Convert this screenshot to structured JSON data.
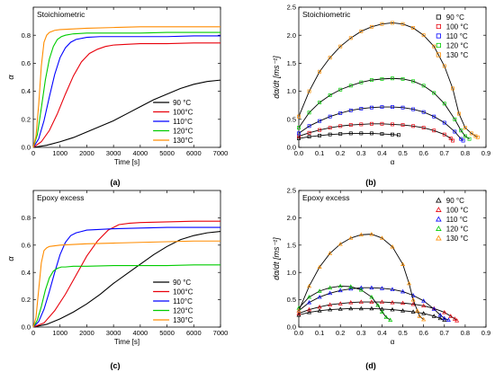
{
  "figure": {
    "panel_labels": [
      "(a)",
      "(b)",
      "(c)",
      "(d)"
    ],
    "colors": {
      "90": "#000000",
      "100": "#e8000b",
      "110": "#0000ff",
      "120": "#00cc00",
      "130": "#ff8c00"
    }
  },
  "chart_data": [
    {
      "id": "a",
      "type": "line",
      "title": "Stoichiometric",
      "xlabel": "Time [s]",
      "ylabel": "α",
      "xlim": [
        0,
        7000
      ],
      "ylim": [
        0,
        1.0
      ],
      "xticks": [
        0,
        1000,
        2000,
        3000,
        4000,
        5000,
        6000,
        7000
      ],
      "yticks": [
        0.0,
        0.2,
        0.4,
        0.6,
        0.8
      ],
      "legend": "bottom-right",
      "series": [
        {
          "name": "90 °C",
          "color": "#000000",
          "x": [
            0,
            500,
            1000,
            1500,
            2000,
            2500,
            3000,
            3500,
            4000,
            4500,
            5000,
            5500,
            6000,
            6500,
            7000
          ],
          "y": [
            0,
            0.015,
            0.04,
            0.07,
            0.11,
            0.15,
            0.19,
            0.24,
            0.29,
            0.34,
            0.38,
            0.42,
            0.45,
            0.47,
            0.48
          ]
        },
        {
          "name": "100°C",
          "color": "#e8000b",
          "x": [
            0,
            300,
            600,
            900,
            1200,
            1500,
            1800,
            2100,
            2400,
            2700,
            3000,
            3500,
            4000,
            5000,
            6000,
            7000
          ],
          "y": [
            0,
            0.04,
            0.12,
            0.24,
            0.38,
            0.51,
            0.61,
            0.67,
            0.7,
            0.72,
            0.73,
            0.735,
            0.74,
            0.74,
            0.745,
            0.745
          ]
        },
        {
          "name": "110°C",
          "color": "#0000ff",
          "x": [
            0,
            200,
            400,
            600,
            800,
            1000,
            1200,
            1400,
            1600,
            2000,
            2500,
            3000,
            4000,
            5000,
            6000,
            7000
          ],
          "y": [
            0,
            0.06,
            0.19,
            0.36,
            0.52,
            0.64,
            0.71,
            0.75,
            0.77,
            0.785,
            0.79,
            0.79,
            0.79,
            0.79,
            0.795,
            0.795
          ]
        },
        {
          "name": "120°C",
          "color": "#00cc00",
          "x": [
            0,
            150,
            300,
            450,
            600,
            750,
            900,
            1050,
            1200,
            1500,
            2000,
            3000,
            4000,
            5000,
            6000,
            7000
          ],
          "y": [
            0,
            0.09,
            0.28,
            0.48,
            0.63,
            0.72,
            0.77,
            0.79,
            0.8,
            0.81,
            0.815,
            0.815,
            0.815,
            0.82,
            0.82,
            0.82
          ]
        },
        {
          "name": "130°C",
          "color": "#ff8c00",
          "x": [
            0,
            100,
            200,
            300,
            400,
            500,
            600,
            800,
            1000,
            1500,
            2000,
            3000,
            4000,
            5000,
            6000,
            7000
          ],
          "y": [
            0,
            0.08,
            0.3,
            0.58,
            0.75,
            0.8,
            0.82,
            0.835,
            0.84,
            0.845,
            0.85,
            0.855,
            0.86,
            0.86,
            0.86,
            0.86
          ]
        }
      ]
    },
    {
      "id": "b",
      "type": "scatter",
      "title": "Stoichiometric",
      "xlabel": "α",
      "ylabel": "dα/dt [ms⁻¹]",
      "xlim": [
        0,
        0.9
      ],
      "ylim": [
        0,
        2.5
      ],
      "xticks": [
        0.0,
        0.1,
        0.2,
        0.3,
        0.4,
        0.5,
        0.6,
        0.7,
        0.8,
        0.9
      ],
      "yticks": [
        0.0,
        0.5,
        1.0,
        1.5,
        2.0,
        2.5
      ],
      "legend": "top-right",
      "markers": "open squares with black fit lines",
      "series": [
        {
          "name": "90 °C",
          "color": "#000000",
          "x": [
            0.0,
            0.05,
            0.1,
            0.15,
            0.2,
            0.25,
            0.3,
            0.35,
            0.4,
            0.45,
            0.48
          ],
          "y": [
            0.16,
            0.19,
            0.21,
            0.23,
            0.24,
            0.25,
            0.25,
            0.25,
            0.24,
            0.23,
            0.22
          ]
        },
        {
          "name": "100 °C",
          "color": "#e8000b",
          "x": [
            0.0,
            0.05,
            0.1,
            0.15,
            0.2,
            0.25,
            0.3,
            0.35,
            0.4,
            0.45,
            0.5,
            0.55,
            0.6,
            0.65,
            0.7,
            0.73,
            0.74
          ],
          "y": [
            0.2,
            0.26,
            0.31,
            0.35,
            0.38,
            0.4,
            0.41,
            0.42,
            0.42,
            0.41,
            0.4,
            0.38,
            0.35,
            0.3,
            0.23,
            0.16,
            0.12
          ]
        },
        {
          "name": "110 °C",
          "color": "#0000ff",
          "x": [
            0.0,
            0.05,
            0.1,
            0.15,
            0.2,
            0.25,
            0.3,
            0.35,
            0.4,
            0.45,
            0.5,
            0.55,
            0.6,
            0.65,
            0.7,
            0.75,
            0.78,
            0.79
          ],
          "y": [
            0.25,
            0.38,
            0.47,
            0.55,
            0.61,
            0.66,
            0.69,
            0.71,
            0.72,
            0.72,
            0.71,
            0.68,
            0.63,
            0.55,
            0.44,
            0.28,
            0.15,
            0.12
          ]
        },
        {
          "name": "120 °C",
          "color": "#00cc00",
          "x": [
            0.0,
            0.05,
            0.1,
            0.15,
            0.2,
            0.25,
            0.3,
            0.35,
            0.4,
            0.45,
            0.5,
            0.55,
            0.6,
            0.65,
            0.7,
            0.75,
            0.78,
            0.8,
            0.82
          ],
          "y": [
            0.35,
            0.62,
            0.8,
            0.93,
            1.03,
            1.1,
            1.16,
            1.2,
            1.22,
            1.23,
            1.22,
            1.18,
            1.1,
            0.97,
            0.78,
            0.5,
            0.3,
            0.2,
            0.15
          ]
        },
        {
          "name": "130 °C",
          "color": "#ff8c00",
          "x": [
            0.0,
            0.05,
            0.1,
            0.15,
            0.2,
            0.25,
            0.3,
            0.35,
            0.4,
            0.45,
            0.5,
            0.55,
            0.6,
            0.65,
            0.7,
            0.74,
            0.77,
            0.8,
            0.83,
            0.85,
            0.86
          ],
          "y": [
            0.55,
            1.0,
            1.35,
            1.6,
            1.8,
            1.95,
            2.07,
            2.15,
            2.2,
            2.22,
            2.2,
            2.13,
            2.0,
            1.8,
            1.45,
            1.05,
            0.6,
            0.35,
            0.25,
            0.2,
            0.18
          ]
        }
      ]
    },
    {
      "id": "c",
      "type": "line",
      "title": "Epoxy excess",
      "xlabel": "Time [s]",
      "ylabel": "α",
      "xlim": [
        0,
        7000
      ],
      "ylim": [
        0,
        1.0
      ],
      "xticks": [
        0,
        1000,
        2000,
        3000,
        4000,
        5000,
        6000,
        7000
      ],
      "yticks": [
        0.0,
        0.2,
        0.4,
        0.6,
        0.8
      ],
      "legend": "bottom-right",
      "series": [
        {
          "name": "90 °C",
          "color": "#000000",
          "x": [
            0,
            500,
            1000,
            1500,
            2000,
            2500,
            3000,
            3500,
            4000,
            4500,
            5000,
            5500,
            6000,
            6500,
            7000
          ],
          "y": [
            0,
            0.02,
            0.06,
            0.11,
            0.17,
            0.24,
            0.32,
            0.39,
            0.46,
            0.53,
            0.59,
            0.64,
            0.67,
            0.69,
            0.7
          ]
        },
        {
          "name": "100°C",
          "color": "#e8000b",
          "x": [
            0,
            400,
            800,
            1200,
            1600,
            2000,
            2400,
            2800,
            3200,
            3600,
            4000,
            5000,
            6000,
            7000
          ],
          "y": [
            0,
            0.03,
            0.12,
            0.24,
            0.38,
            0.52,
            0.63,
            0.71,
            0.75,
            0.76,
            0.765,
            0.77,
            0.775,
            0.775
          ]
        },
        {
          "name": "110°C",
          "color": "#0000ff",
          "x": [
            0,
            200,
            400,
            600,
            800,
            1000,
            1200,
            1400,
            1600,
            1800,
            2000,
            3000,
            4000,
            5000,
            6000,
            7000
          ],
          "y": [
            0,
            0.04,
            0.13,
            0.26,
            0.4,
            0.53,
            0.62,
            0.67,
            0.69,
            0.7,
            0.71,
            0.72,
            0.725,
            0.73,
            0.73,
            0.73
          ]
        },
        {
          "name": "120°C",
          "color": "#00cc00",
          "x": [
            0,
            150,
            300,
            450,
            600,
            750,
            900,
            1050,
            1200,
            1500,
            2000,
            3000,
            4000,
            5000,
            6000,
            7000
          ],
          "y": [
            0,
            0.05,
            0.15,
            0.27,
            0.36,
            0.41,
            0.43,
            0.44,
            0.44,
            0.445,
            0.445,
            0.45,
            0.45,
            0.45,
            0.455,
            0.455
          ]
        },
        {
          "name": "130°C",
          "color": "#ff8c00",
          "x": [
            0,
            100,
            200,
            300,
            400,
            500,
            600,
            800,
            1000,
            1500,
            2000,
            3000,
            4000,
            5000,
            6000,
            7000
          ],
          "y": [
            0,
            0.07,
            0.27,
            0.47,
            0.56,
            0.58,
            0.59,
            0.595,
            0.6,
            0.605,
            0.61,
            0.615,
            0.62,
            0.625,
            0.63,
            0.63
          ]
        }
      ]
    },
    {
      "id": "d",
      "type": "scatter",
      "title": "Epoxy excess",
      "xlabel": "α",
      "ylabel": "dα/dt [ms⁻¹]",
      "xlim": [
        0,
        0.9
      ],
      "ylim": [
        0,
        2.5
      ],
      "xticks": [
        0.0,
        0.1,
        0.2,
        0.3,
        0.4,
        0.5,
        0.6,
        0.7,
        0.8,
        0.9
      ],
      "yticks": [
        0.0,
        0.5,
        1.0,
        1.5,
        2.0,
        2.5
      ],
      "legend": "top-right",
      "markers": "open triangles with black fit lines",
      "series": [
        {
          "name": "90 °C",
          "color": "#000000",
          "x": [
            0.0,
            0.05,
            0.1,
            0.15,
            0.2,
            0.25,
            0.3,
            0.35,
            0.4,
            0.45,
            0.5,
            0.55,
            0.6,
            0.65,
            0.68,
            0.7
          ],
          "y": [
            0.22,
            0.27,
            0.3,
            0.32,
            0.33,
            0.34,
            0.34,
            0.34,
            0.33,
            0.32,
            0.3,
            0.28,
            0.25,
            0.2,
            0.16,
            0.13
          ]
        },
        {
          "name": "100 °C",
          "color": "#e8000b",
          "x": [
            0.0,
            0.05,
            0.1,
            0.15,
            0.2,
            0.25,
            0.3,
            0.35,
            0.4,
            0.45,
            0.5,
            0.55,
            0.6,
            0.65,
            0.7,
            0.73,
            0.75,
            0.76
          ],
          "y": [
            0.25,
            0.32,
            0.37,
            0.41,
            0.43,
            0.45,
            0.46,
            0.46,
            0.46,
            0.45,
            0.44,
            0.42,
            0.39,
            0.34,
            0.27,
            0.2,
            0.15,
            0.12
          ]
        },
        {
          "name": "110 °C",
          "color": "#0000ff",
          "x": [
            0.0,
            0.05,
            0.1,
            0.15,
            0.2,
            0.25,
            0.3,
            0.35,
            0.4,
            0.45,
            0.5,
            0.55,
            0.6,
            0.65,
            0.68,
            0.7,
            0.72
          ],
          "y": [
            0.3,
            0.45,
            0.55,
            0.62,
            0.67,
            0.7,
            0.72,
            0.72,
            0.71,
            0.69,
            0.65,
            0.58,
            0.48,
            0.33,
            0.22,
            0.16,
            0.13
          ]
        },
        {
          "name": "120 °C",
          "color": "#00cc00",
          "x": [
            0.0,
            0.05,
            0.1,
            0.15,
            0.2,
            0.25,
            0.3,
            0.35,
            0.38,
            0.4,
            0.42,
            0.44
          ],
          "y": [
            0.35,
            0.55,
            0.66,
            0.72,
            0.75,
            0.74,
            0.68,
            0.55,
            0.4,
            0.28,
            0.18,
            0.13
          ]
        },
        {
          "name": "130 °C",
          "color": "#ff8c00",
          "x": [
            0.0,
            0.05,
            0.1,
            0.15,
            0.2,
            0.25,
            0.3,
            0.35,
            0.4,
            0.45,
            0.5,
            0.53,
            0.55,
            0.57,
            0.58,
            0.6
          ],
          "y": [
            0.3,
            0.75,
            1.1,
            1.35,
            1.52,
            1.63,
            1.69,
            1.7,
            1.63,
            1.47,
            1.15,
            0.8,
            0.5,
            0.3,
            0.2,
            0.14
          ]
        }
      ]
    }
  ]
}
